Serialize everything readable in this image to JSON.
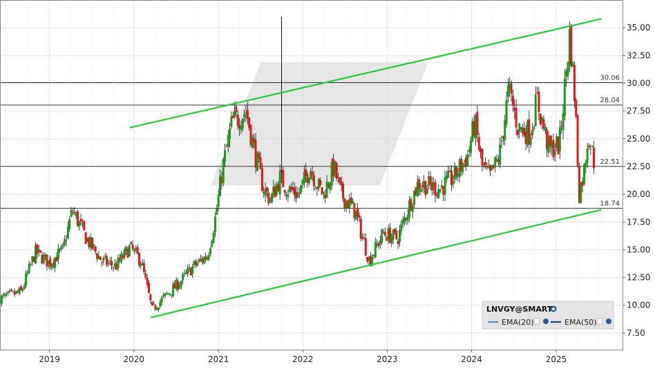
{
  "chart_data": {
    "type": "candlestick",
    "title": "",
    "xlabel": "",
    "ylabel": "",
    "x_ticks": [
      "2019",
      "2020",
      "2021",
      "2022",
      "2023",
      "2024",
      "2025"
    ],
    "y_ticks": [
      "7.50",
      "10.00",
      "12.50",
      "15.00",
      "17.50",
      "20.00",
      "22.50",
      "25.00",
      "27.50",
      "30.00",
      "32.50",
      "35.00"
    ],
    "ylim": [
      6.0,
      37.5
    ],
    "xlim": [
      "2018-06-01",
      "2025-10-15"
    ],
    "grid": true,
    "up_color": "#1a9a1a",
    "down_color": "#e01818",
    "trendline_color": "#22cc33",
    "levels": [
      {
        "value": 30.06,
        "label": "30.06"
      },
      {
        "value": 28.04,
        "label": "28.04"
      },
      {
        "value": 22.51,
        "label": "22.51"
      },
      {
        "value": 18.74,
        "label": "18.74"
      }
    ],
    "trendlines": [
      {
        "from": [
          "2019-12-15",
          26.0
        ],
        "to": [
          "2025-07-15",
          35.8
        ]
      },
      {
        "from": [
          "2020-03-15",
          8.9
        ],
        "to": [
          "2025-07-15",
          18.6
        ]
      }
    ],
    "close_path": [
      [
        "2018-06-01",
        10.6
      ],
      [
        "2018-09-01",
        11.2
      ],
      [
        "2018-11-01",
        14.8
      ],
      [
        "2019-01-01",
        13.8
      ],
      [
        "2019-03-01",
        15.0
      ],
      [
        "2019-04-10",
        18.6
      ],
      [
        "2019-06-10",
        16.0
      ],
      [
        "2019-08-15",
        14.0
      ],
      [
        "2019-10-15",
        13.5
      ],
      [
        "2019-12-15",
        15.2
      ],
      [
        "2020-02-01",
        14.0
      ],
      [
        "2020-03-20",
        9.6
      ],
      [
        "2020-05-15",
        10.8
      ],
      [
        "2020-07-15",
        12.0
      ],
      [
        "2020-09-15",
        13.5
      ],
      [
        "2020-11-15",
        14.5
      ],
      [
        "2020-12-20",
        18.0
      ],
      [
        "2021-01-20",
        22.5
      ],
      [
        "2021-03-01",
        26.5
      ],
      [
        "2021-05-01",
        27.5
      ],
      [
        "2021-06-10",
        23.5
      ],
      [
        "2021-07-15",
        20.5
      ],
      [
        "2021-08-15",
        19.5
      ],
      [
        "2021-09-25",
        21.5
      ],
      [
        "2021-10-25",
        20.5
      ],
      [
        "2021-12-15",
        20.0
      ],
      [
        "2022-02-01",
        22.5
      ],
      [
        "2022-03-01",
        21.0
      ],
      [
        "2022-04-01",
        20.0
      ],
      [
        "2022-05-15",
        22.5
      ],
      [
        "2022-06-15",
        20.0
      ],
      [
        "2022-08-15",
        18.5
      ],
      [
        "2022-10-15",
        14.0
      ],
      [
        "2022-12-15",
        16.5
      ],
      [
        "2023-02-15",
        16.0
      ],
      [
        "2023-04-15",
        19.5
      ],
      [
        "2023-05-15",
        21.0
      ],
      [
        "2023-08-15",
        20.5
      ],
      [
        "2023-10-15",
        21.5
      ],
      [
        "2023-12-15",
        23.5
      ],
      [
        "2024-01-15",
        26.5
      ],
      [
        "2024-02-15",
        22.5
      ],
      [
        "2024-03-20",
        21.5
      ],
      [
        "2024-05-01",
        23.5
      ],
      [
        "2024-06-10",
        29.5
      ],
      [
        "2024-07-20",
        26.0
      ],
      [
        "2024-09-10",
        25.5
      ],
      [
        "2024-10-10",
        28.5
      ],
      [
        "2024-12-01",
        24.0
      ],
      [
        "2025-01-15",
        24.5
      ],
      [
        "2025-03-01",
        34.5
      ],
      [
        "2025-03-25",
        28.0
      ],
      [
        "2025-04-10",
        20.0
      ],
      [
        "2025-05-01",
        22.0
      ],
      [
        "2025-05-20",
        25.5
      ],
      [
        "2025-06-15",
        22.8
      ]
    ],
    "spikes": [
      {
        "date": "2021-10-01",
        "high": 36.0,
        "low": 21.0
      }
    ]
  },
  "legend": {
    "symbol": "LNVGY@SMART",
    "items": [
      {
        "label": "EMA(20)",
        "color": "#3a8ad0"
      },
      {
        "label": "EMA(50)",
        "color": "#1133cc"
      }
    ]
  }
}
